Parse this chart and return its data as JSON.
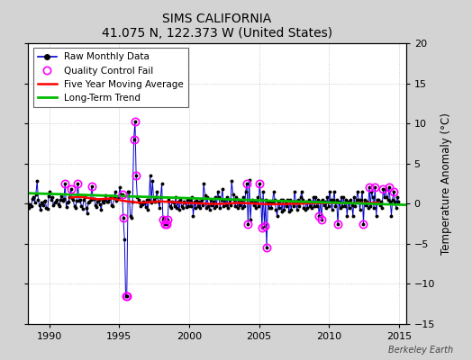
{
  "title": "SIMS CALIFORNIA",
  "subtitle": "41.075 N, 122.373 W (United States)",
  "ylabel_right": "Temperature Anomaly (°C)",
  "watermark": "Berkeley Earth",
  "xlim": [
    1988.5,
    2015.5
  ],
  "ylim": [
    -15,
    20
  ],
  "yticks": [
    -15,
    -10,
    -5,
    0,
    5,
    10,
    15,
    20
  ],
  "xticks": [
    1990,
    1995,
    2000,
    2005,
    2010,
    2015
  ],
  "bg_color": "#d3d3d3",
  "plot_bg_color": "#ffffff",
  "raw_color": "#0000cc",
  "raw_marker_color": "#000000",
  "qc_color": "#ff00ff",
  "moving_avg_color": "#ff0000",
  "trend_color": "#00bb00",
  "trend_x": [
    1988.5,
    2015.5
  ],
  "trend_y": [
    1.3,
    -0.15
  ],
  "raw_data": [
    [
      1988.04,
      0.5
    ],
    [
      1988.12,
      1.8
    ],
    [
      1988.21,
      -0.3
    ],
    [
      1988.29,
      0.1
    ],
    [
      1988.38,
      0.3
    ],
    [
      1988.46,
      -0.4
    ],
    [
      1988.54,
      -0.5
    ],
    [
      1988.63,
      -0.1
    ],
    [
      1988.71,
      -0.3
    ],
    [
      1988.79,
      0.6
    ],
    [
      1988.88,
      0.8
    ],
    [
      1988.96,
      0.2
    ],
    [
      1989.04,
      1.2
    ],
    [
      1989.13,
      2.8
    ],
    [
      1989.21,
      0.5
    ],
    [
      1989.29,
      -0.2
    ],
    [
      1989.38,
      -0.8
    ],
    [
      1989.46,
      0.1
    ],
    [
      1989.54,
      -0.2
    ],
    [
      1989.63,
      0.3
    ],
    [
      1989.71,
      0.4
    ],
    [
      1989.79,
      -0.5
    ],
    [
      1989.88,
      -0.6
    ],
    [
      1989.96,
      0.9
    ],
    [
      1990.04,
      1.5
    ],
    [
      1990.13,
      0.5
    ],
    [
      1990.21,
      0.8
    ],
    [
      1990.29,
      -0.2
    ],
    [
      1990.38,
      0.2
    ],
    [
      1990.46,
      0.3
    ],
    [
      1990.54,
      0.5
    ],
    [
      1990.63,
      -0.1
    ],
    [
      1990.71,
      -0.3
    ],
    [
      1990.79,
      0.5
    ],
    [
      1990.88,
      0.9
    ],
    [
      1990.96,
      0.4
    ],
    [
      1991.04,
      0.6
    ],
    [
      1991.13,
      2.5
    ],
    [
      1991.21,
      -0.4
    ],
    [
      1991.29,
      0.2
    ],
    [
      1991.38,
      0.3
    ],
    [
      1991.46,
      0.8
    ],
    [
      1991.54,
      1.8
    ],
    [
      1991.63,
      0.7
    ],
    [
      1991.71,
      0.5
    ],
    [
      1991.79,
      -0.3
    ],
    [
      1991.88,
      -0.5
    ],
    [
      1991.96,
      0.4
    ],
    [
      1992.04,
      2.5
    ],
    [
      1992.13,
      0.4
    ],
    [
      1992.21,
      0.5
    ],
    [
      1992.29,
      -0.3
    ],
    [
      1992.38,
      -0.6
    ],
    [
      1992.46,
      0.5
    ],
    [
      1992.54,
      0.8
    ],
    [
      1992.63,
      -0.5
    ],
    [
      1992.71,
      -1.2
    ],
    [
      1992.79,
      0.2
    ],
    [
      1992.88,
      0.3
    ],
    [
      1992.96,
      0.5
    ],
    [
      1993.04,
      2.2
    ],
    [
      1993.13,
      0.6
    ],
    [
      1993.21,
      0.6
    ],
    [
      1993.29,
      -0.2
    ],
    [
      1993.38,
      -0.4
    ],
    [
      1993.46,
      0.3
    ],
    [
      1993.54,
      0.5
    ],
    [
      1993.63,
      -0.1
    ],
    [
      1993.71,
      -0.8
    ],
    [
      1993.79,
      0.4
    ],
    [
      1993.88,
      0.2
    ],
    [
      1993.96,
      0.5
    ],
    [
      1994.04,
      1.0
    ],
    [
      1994.13,
      0.3
    ],
    [
      1994.21,
      0.3
    ],
    [
      1994.29,
      0.6
    ],
    [
      1994.38,
      0.9
    ],
    [
      1994.46,
      -0.2
    ],
    [
      1994.54,
      -0.3
    ],
    [
      1994.63,
      0.8
    ],
    [
      1994.71,
      1.5
    ],
    [
      1994.79,
      0.4
    ],
    [
      1994.88,
      0.6
    ],
    [
      1994.96,
      0.8
    ],
    [
      1995.04,
      2.0
    ],
    [
      1995.13,
      1.2
    ],
    [
      1995.21,
      1.2
    ],
    [
      1995.29,
      -1.8
    ],
    [
      1995.38,
      -4.5
    ],
    [
      1995.46,
      -11.5
    ],
    [
      1995.54,
      -11.5
    ],
    [
      1995.63,
      1.5
    ],
    [
      1995.71,
      1.5
    ],
    [
      1995.79,
      -1.5
    ],
    [
      1995.88,
      -1.8
    ],
    [
      1995.96,
      0.3
    ],
    [
      1996.04,
      8.0
    ],
    [
      1996.13,
      10.2
    ],
    [
      1996.21,
      3.5
    ],
    [
      1996.29,
      0.8
    ],
    [
      1996.38,
      0.5
    ],
    [
      1996.46,
      0.2
    ],
    [
      1996.54,
      -0.3
    ],
    [
      1996.63,
      -0.1
    ],
    [
      1996.71,
      0.3
    ],
    [
      1996.79,
      0.2
    ],
    [
      1996.88,
      -0.4
    ],
    [
      1996.96,
      0.5
    ],
    [
      1997.04,
      -0.8
    ],
    [
      1997.13,
      0.5
    ],
    [
      1997.21,
      3.5
    ],
    [
      1997.29,
      0.2
    ],
    [
      1997.38,
      2.8
    ],
    [
      1997.46,
      0.5
    ],
    [
      1997.54,
      0.3
    ],
    [
      1997.63,
      0.8
    ],
    [
      1997.71,
      1.5
    ],
    [
      1997.79,
      0.3
    ],
    [
      1997.88,
      -0.5
    ],
    [
      1997.96,
      0.8
    ],
    [
      1998.04,
      2.5
    ],
    [
      1998.13,
      -2.0
    ],
    [
      1998.21,
      -1.8
    ],
    [
      1998.29,
      -2.5
    ],
    [
      1998.38,
      -2.5
    ],
    [
      1998.46,
      -2.0
    ],
    [
      1998.54,
      0.5
    ],
    [
      1998.63,
      -0.3
    ],
    [
      1998.71,
      -0.5
    ],
    [
      1998.79,
      0.3
    ],
    [
      1998.88,
      0.2
    ],
    [
      1998.96,
      -0.3
    ],
    [
      1999.04,
      0.8
    ],
    [
      1999.13,
      -0.5
    ],
    [
      1999.21,
      0.3
    ],
    [
      1999.29,
      -0.8
    ],
    [
      1999.38,
      0.5
    ],
    [
      1999.46,
      -0.3
    ],
    [
      1999.54,
      -0.5
    ],
    [
      1999.63,
      0.3
    ],
    [
      1999.71,
      0.2
    ],
    [
      1999.79,
      -0.4
    ],
    [
      1999.88,
      0.5
    ],
    [
      1999.96,
      -0.3
    ],
    [
      2000.04,
      0.5
    ],
    [
      2000.13,
      -0.3
    ],
    [
      2000.21,
      0.8
    ],
    [
      2000.29,
      -1.5
    ],
    [
      2000.38,
      0.3
    ],
    [
      2000.46,
      -0.5
    ],
    [
      2000.54,
      0.4
    ],
    [
      2000.63,
      -0.3
    ],
    [
      2000.71,
      0.3
    ],
    [
      2000.79,
      -0.5
    ],
    [
      2000.88,
      0.5
    ],
    [
      2000.96,
      -0.2
    ],
    [
      2001.04,
      2.5
    ],
    [
      2001.13,
      1.0
    ],
    [
      2001.21,
      -0.5
    ],
    [
      2001.29,
      0.8
    ],
    [
      2001.38,
      -0.3
    ],
    [
      2001.46,
      -0.8
    ],
    [
      2001.54,
      0.5
    ],
    [
      2001.63,
      -0.2
    ],
    [
      2001.71,
      0.3
    ],
    [
      2001.79,
      -0.5
    ],
    [
      2001.88,
      0.8
    ],
    [
      2001.96,
      -0.3
    ],
    [
      2002.04,
      1.5
    ],
    [
      2002.13,
      0.8
    ],
    [
      2002.21,
      -0.5
    ],
    [
      2002.29,
      0.5
    ],
    [
      2002.38,
      1.8
    ],
    [
      2002.46,
      -0.3
    ],
    [
      2002.54,
      0.5
    ],
    [
      2002.63,
      -0.2
    ],
    [
      2002.71,
      0.8
    ],
    [
      2002.79,
      -0.5
    ],
    [
      2002.88,
      0.5
    ],
    [
      2002.96,
      -0.2
    ],
    [
      2003.04,
      2.8
    ],
    [
      2003.13,
      1.2
    ],
    [
      2003.21,
      0.5
    ],
    [
      2003.29,
      -0.3
    ],
    [
      2003.38,
      0.8
    ],
    [
      2003.46,
      -0.5
    ],
    [
      2003.54,
      0.5
    ],
    [
      2003.63,
      -0.2
    ],
    [
      2003.71,
      0.3
    ],
    [
      2003.79,
      -0.5
    ],
    [
      2003.88,
      0.8
    ],
    [
      2003.96,
      -0.3
    ],
    [
      2004.04,
      1.5
    ],
    [
      2004.13,
      2.5
    ],
    [
      2004.21,
      -2.5
    ],
    [
      2004.29,
      3.0
    ],
    [
      2004.38,
      -2.0
    ],
    [
      2004.46,
      0.3
    ],
    [
      2004.54,
      0.5
    ],
    [
      2004.63,
      -0.2
    ],
    [
      2004.71,
      0.3
    ],
    [
      2004.79,
      -0.5
    ],
    [
      2004.88,
      0.8
    ],
    [
      2004.96,
      -0.3
    ],
    [
      2005.04,
      2.5
    ],
    [
      2005.13,
      0.5
    ],
    [
      2005.21,
      -3.0
    ],
    [
      2005.29,
      1.5
    ],
    [
      2005.38,
      -2.8
    ],
    [
      2005.46,
      0.5
    ],
    [
      2005.54,
      -5.5
    ],
    [
      2005.63,
      0.3
    ],
    [
      2005.71,
      -0.5
    ],
    [
      2005.79,
      0.3
    ],
    [
      2005.88,
      -0.5
    ],
    [
      2005.96,
      0.3
    ],
    [
      2006.04,
      1.5
    ],
    [
      2006.13,
      0.5
    ],
    [
      2006.21,
      -0.8
    ],
    [
      2006.29,
      -1.5
    ],
    [
      2006.38,
      0.3
    ],
    [
      2006.46,
      -0.5
    ],
    [
      2006.54,
      0.5
    ],
    [
      2006.63,
      -1.0
    ],
    [
      2006.71,
      0.5
    ],
    [
      2006.79,
      -0.8
    ],
    [
      2006.88,
      0.3
    ],
    [
      2006.96,
      -0.3
    ],
    [
      2007.04,
      0.5
    ],
    [
      2007.13,
      -1.0
    ],
    [
      2007.21,
      0.5
    ],
    [
      2007.29,
      -0.8
    ],
    [
      2007.38,
      0.3
    ],
    [
      2007.46,
      -0.3
    ],
    [
      2007.54,
      1.5
    ],
    [
      2007.63,
      0.3
    ],
    [
      2007.71,
      -0.8
    ],
    [
      2007.79,
      0.5
    ],
    [
      2007.88,
      -0.3
    ],
    [
      2007.96,
      0.8
    ],
    [
      2008.04,
      1.5
    ],
    [
      2008.13,
      0.5
    ],
    [
      2008.21,
      -0.5
    ],
    [
      2008.29,
      -0.8
    ],
    [
      2008.38,
      0.3
    ],
    [
      2008.46,
      -0.5
    ],
    [
      2008.54,
      0.5
    ],
    [
      2008.63,
      -0.3
    ],
    [
      2008.71,
      0.3
    ],
    [
      2008.79,
      -0.5
    ],
    [
      2008.88,
      0.8
    ],
    [
      2008.96,
      -0.3
    ],
    [
      2009.04,
      0.8
    ],
    [
      2009.13,
      -0.3
    ],
    [
      2009.21,
      0.5
    ],
    [
      2009.29,
      -1.5
    ],
    [
      2009.38,
      0.3
    ],
    [
      2009.46,
      -2.0
    ],
    [
      2009.54,
      0.5
    ],
    [
      2009.63,
      -0.2
    ],
    [
      2009.71,
      0.3
    ],
    [
      2009.79,
      -0.5
    ],
    [
      2009.88,
      0.8
    ],
    [
      2009.96,
      -0.3
    ],
    [
      2010.04,
      1.5
    ],
    [
      2010.13,
      0.5
    ],
    [
      2010.21,
      -0.8
    ],
    [
      2010.29,
      0.5
    ],
    [
      2010.38,
      1.5
    ],
    [
      2010.46,
      -0.3
    ],
    [
      2010.54,
      0.5
    ],
    [
      2010.63,
      -2.5
    ],
    [
      2010.71,
      0.3
    ],
    [
      2010.79,
      -0.5
    ],
    [
      2010.88,
      0.8
    ],
    [
      2010.96,
      -0.3
    ],
    [
      2011.04,
      0.8
    ],
    [
      2011.13,
      -0.3
    ],
    [
      2011.21,
      0.5
    ],
    [
      2011.29,
      -1.5
    ],
    [
      2011.38,
      0.3
    ],
    [
      2011.46,
      -0.5
    ],
    [
      2011.54,
      0.5
    ],
    [
      2011.63,
      -0.2
    ],
    [
      2011.71,
      -1.5
    ],
    [
      2011.79,
      0.8
    ],
    [
      2011.88,
      -0.3
    ],
    [
      2011.96,
      0.5
    ],
    [
      2012.04,
      1.5
    ],
    [
      2012.13,
      0.5
    ],
    [
      2012.21,
      -0.8
    ],
    [
      2012.29,
      0.5
    ],
    [
      2012.38,
      1.5
    ],
    [
      2012.46,
      -2.5
    ],
    [
      2012.54,
      0.5
    ],
    [
      2012.63,
      -0.2
    ],
    [
      2012.71,
      0.3
    ],
    [
      2012.79,
      -0.5
    ],
    [
      2012.88,
      2.0
    ],
    [
      2012.96,
      -0.3
    ],
    [
      2013.04,
      1.5
    ],
    [
      2013.13,
      0.8
    ],
    [
      2013.21,
      -0.5
    ],
    [
      2013.29,
      2.0
    ],
    [
      2013.38,
      -1.5
    ],
    [
      2013.46,
      0.5
    ],
    [
      2013.54,
      0.5
    ],
    [
      2013.63,
      -0.2
    ],
    [
      2013.71,
      0.3
    ],
    [
      2013.79,
      -0.5
    ],
    [
      2013.88,
      1.8
    ],
    [
      2013.96,
      0.8
    ],
    [
      2014.04,
      1.8
    ],
    [
      2014.13,
      0.8
    ],
    [
      2014.21,
      0.5
    ],
    [
      2014.29,
      2.0
    ],
    [
      2014.38,
      0.3
    ],
    [
      2014.46,
      -1.5
    ],
    [
      2014.54,
      0.5
    ],
    [
      2014.63,
      1.5
    ],
    [
      2014.71,
      0.3
    ],
    [
      2014.79,
      -0.5
    ],
    [
      2014.88,
      0.8
    ],
    [
      2014.96,
      0.3
    ]
  ],
  "qc_fail_points": [
    [
      1991.13,
      2.5
    ],
    [
      1991.54,
      1.8
    ],
    [
      1992.04,
      2.5
    ],
    [
      1993.04,
      2.2
    ],
    [
      1995.21,
      1.2
    ],
    [
      1995.29,
      -1.8
    ],
    [
      1995.46,
      -11.5
    ],
    [
      1995.54,
      -11.5
    ],
    [
      1996.04,
      8.0
    ],
    [
      1996.13,
      10.2
    ],
    [
      1996.21,
      3.5
    ],
    [
      1998.13,
      -2.0
    ],
    [
      1998.29,
      -2.5
    ],
    [
      1998.38,
      -2.5
    ],
    [
      1998.46,
      -2.0
    ],
    [
      2004.13,
      2.5
    ],
    [
      2004.21,
      -2.5
    ],
    [
      2005.04,
      2.5
    ],
    [
      2005.21,
      -3.0
    ],
    [
      2005.38,
      -2.8
    ],
    [
      2005.54,
      -5.5
    ],
    [
      2009.29,
      -1.5
    ],
    [
      2009.46,
      -2.0
    ],
    [
      2010.63,
      -2.5
    ],
    [
      2012.46,
      -2.5
    ],
    [
      2012.88,
      2.0
    ],
    [
      2013.29,
      2.0
    ],
    [
      2013.88,
      1.8
    ],
    [
      2014.29,
      2.0
    ],
    [
      2014.63,
      1.5
    ]
  ],
  "moving_avg": [
    [
      1991.5,
      0.75
    ],
    [
      1992.0,
      0.85
    ],
    [
      1992.5,
      0.8
    ],
    [
      1993.0,
      0.65
    ],
    [
      1993.5,
      0.55
    ],
    [
      1994.0,
      0.6
    ],
    [
      1994.5,
      0.65
    ],
    [
      1995.0,
      0.45
    ],
    [
      1995.5,
      0.3
    ],
    [
      1996.0,
      0.2
    ],
    [
      1996.5,
      0.12
    ],
    [
      1997.0,
      0.18
    ],
    [
      1997.5,
      0.22
    ],
    [
      1998.0,
      0.28
    ],
    [
      1998.5,
      0.22
    ],
    [
      1999.0,
      0.18
    ],
    [
      1999.5,
      0.12
    ],
    [
      2000.0,
      0.08
    ],
    [
      2000.5,
      0.05
    ],
    [
      2001.0,
      0.02
    ],
    [
      2001.5,
      -0.02
    ],
    [
      2002.0,
      -0.04
    ],
    [
      2002.5,
      0.0
    ],
    [
      2003.0,
      0.04
    ],
    [
      2003.5,
      0.08
    ],
    [
      2004.0,
      0.06
    ],
    [
      2004.5,
      0.03
    ],
    [
      2005.0,
      -0.02
    ],
    [
      2005.5,
      -0.06
    ],
    [
      2006.0,
      -0.08
    ],
    [
      2006.5,
      -0.06
    ],
    [
      2007.0,
      -0.04
    ],
    [
      2007.5,
      -0.02
    ],
    [
      2008.0,
      0.0
    ],
    [
      2008.5,
      0.04
    ],
    [
      2009.0,
      0.06
    ],
    [
      2009.5,
      0.08
    ],
    [
      2010.0,
      0.1
    ],
    [
      2010.5,
      0.08
    ],
    [
      2011.0,
      0.06
    ],
    [
      2011.5,
      0.04
    ],
    [
      2012.0,
      0.06
    ],
    [
      2012.5,
      0.08
    ],
    [
      2013.0,
      0.1
    ],
    [
      2013.5,
      0.12
    ]
  ]
}
